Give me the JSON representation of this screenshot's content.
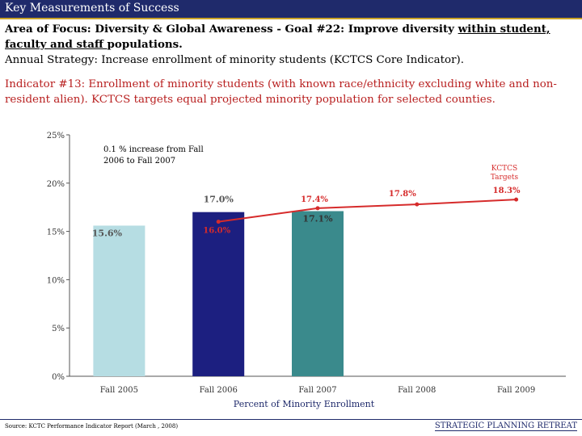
{
  "header": {
    "title": "Key Measurements of Success"
  },
  "focus": {
    "line1_prefix": "Area of Focus: Diversity & Global Awareness - Goal #22:  Improve diversity ",
    "line1_underlined": "within student, faculty and staff ",
    "line1_suffix": "populations.",
    "line2": "Annual Strategy:  Increase enrollment of minority students (KCTCS Core Indicator)."
  },
  "indicator": {
    "text": "Indicator #13:  Enrollment of minority students (with known race/ethnicity excluding white and non-resident alien).  KCTCS targets equal projected minority population for selected counties."
  },
  "chart_data": {
    "type": "bar",
    "categories": [
      "Fall 2005",
      "Fall 2006",
      "Fall 2007",
      "Fall 2008",
      "Fall 2009"
    ],
    "series": [
      {
        "name": "",
        "values": [
          15.6,
          17.0,
          17.1,
          null,
          null
        ],
        "labels": [
          "15.6%",
          "17.0%",
          "17.1%",
          "",
          ""
        ],
        "colors": [
          "#b6dde3",
          "#1c1f80",
          "#3a8a8c",
          "",
          ""
        ]
      },
      {
        "name": "KCTCS Targets",
        "type": "line",
        "values": [
          null,
          16.0,
          17.4,
          17.8,
          18.3
        ],
        "labels": [
          "",
          "16.0%",
          "17.4%",
          "17.8%",
          "18.3%"
        ],
        "color": "#d62b2b"
      }
    ],
    "yticks": [
      "0%",
      "5%",
      "10%",
      "15%",
      "20%",
      "25%"
    ],
    "ylim": [
      0,
      25
    ],
    "xlabel": "Percent of Minority Enrollment",
    "annotation": "0.1 % increase from Fall 2006 to Fall 2007",
    "target_legend": "KCTCS Targets",
    "grid": false
  },
  "footer": {
    "source": "Source:  KCTC Performance Indicator Report (March , 2008)",
    "right": "STRATEGIC PLANNING RETREAT"
  },
  "colors": {
    "header_bg": "#1f2a6b",
    "accent_gold": "#c9a227",
    "indicator_red": "#b81f1f",
    "target_red": "#d62b2b"
  }
}
